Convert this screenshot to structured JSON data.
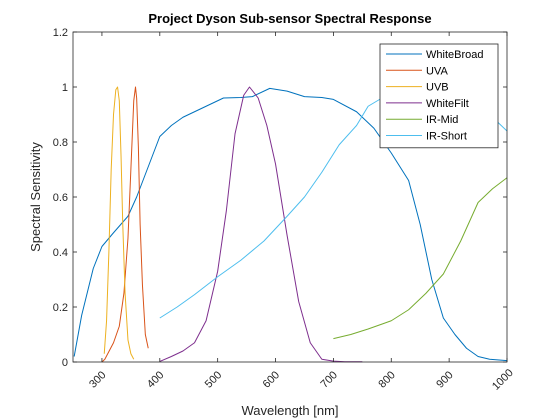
{
  "chart_data": {
    "type": "line",
    "title": "Project Dyson Sub-sensor Spectral Response",
    "xlabel": "Wavelength [nm]",
    "ylabel": "Spectral Sensitivity",
    "xlim": [
      250,
      1000
    ],
    "ylim": [
      0,
      1.2
    ],
    "xticks": [
      300,
      400,
      500,
      600,
      700,
      800,
      900,
      1000
    ],
    "xtick_labels": [
      "300",
      "400",
      "500",
      "600",
      "700",
      "800",
      "900",
      "1000"
    ],
    "yticks": [
      0,
      0.2,
      0.4,
      0.6,
      0.8,
      1,
      1.2
    ],
    "ytick_labels": [
      "0",
      "0.2",
      "0.4",
      "0.6",
      "0.8",
      "1",
      "1.2"
    ],
    "grid": false,
    "legend_position": "top-right",
    "series": [
      {
        "name": "WhiteBroad",
        "color": "#0072BD",
        "x": [
          252,
          265,
          285,
          300,
          320,
          345,
          360,
          380,
          400,
          420,
          440,
          480,
          510,
          540,
          560,
          590,
          620,
          650,
          680,
          700,
          740,
          770,
          800,
          830,
          850,
          870,
          890,
          910,
          930,
          950,
          970,
          1000
        ],
        "y": [
          0.02,
          0.17,
          0.34,
          0.42,
          0.47,
          0.53,
          0.6,
          0.71,
          0.82,
          0.86,
          0.89,
          0.93,
          0.96,
          0.962,
          0.965,
          0.995,
          0.985,
          0.965,
          0.962,
          0.955,
          0.91,
          0.85,
          0.76,
          0.66,
          0.5,
          0.3,
          0.16,
          0.1,
          0.05,
          0.02,
          0.01,
          0.005
        ]
      },
      {
        "name": "UVA",
        "color": "#D95319",
        "x": [
          300,
          305,
          310,
          320,
          330,
          338,
          345,
          350,
          355,
          358,
          360,
          363,
          366,
          370,
          375,
          380
        ],
        "y": [
          0.0,
          0.01,
          0.03,
          0.07,
          0.13,
          0.25,
          0.45,
          0.7,
          0.95,
          1.0,
          0.96,
          0.78,
          0.5,
          0.28,
          0.1,
          0.05
        ]
      },
      {
        "name": "UVB",
        "color": "#EDB120",
        "x": [
          304,
          308,
          312,
          316,
          320,
          324,
          327,
          330,
          333,
          336,
          340,
          345,
          350,
          355
        ],
        "y": [
          0.03,
          0.15,
          0.4,
          0.7,
          0.9,
          0.99,
          1.0,
          0.95,
          0.75,
          0.5,
          0.25,
          0.08,
          0.03,
          0.01
        ]
      },
      {
        "name": "WhiteFilt",
        "color": "#7E2F8E",
        "x": [
          400,
          420,
          440,
          460,
          480,
          500,
          515,
          530,
          545,
          555,
          570,
          585,
          600,
          620,
          640,
          660,
          680,
          700,
          720,
          750
        ],
        "y": [
          0.002,
          0.02,
          0.04,
          0.07,
          0.15,
          0.33,
          0.55,
          0.83,
          0.97,
          1.0,
          0.96,
          0.86,
          0.72,
          0.46,
          0.22,
          0.07,
          0.01,
          0.003,
          0.001,
          0.001
        ]
      },
      {
        "name": "IR-Mid",
        "color": "#77AC30",
        "x": [
          700,
          730,
          760,
          800,
          830,
          860,
          890,
          920,
          950,
          975,
          1000
        ],
        "y": [
          0.085,
          0.1,
          0.12,
          0.15,
          0.19,
          0.25,
          0.32,
          0.44,
          0.58,
          0.63,
          0.67
        ]
      },
      {
        "name": "IR-Short",
        "color": "#4DBEEE",
        "x": [
          400,
          430,
          460,
          500,
          540,
          580,
          620,
          650,
          680,
          710,
          740,
          760,
          780,
          800,
          820,
          850,
          880,
          910,
          940,
          970,
          1000
        ],
        "y": [
          0.16,
          0.2,
          0.245,
          0.31,
          0.37,
          0.44,
          0.53,
          0.6,
          0.69,
          0.79,
          0.86,
          0.93,
          0.955,
          0.965,
          0.97,
          0.975,
          0.965,
          0.96,
          0.945,
          0.9,
          0.84
        ]
      }
    ]
  }
}
